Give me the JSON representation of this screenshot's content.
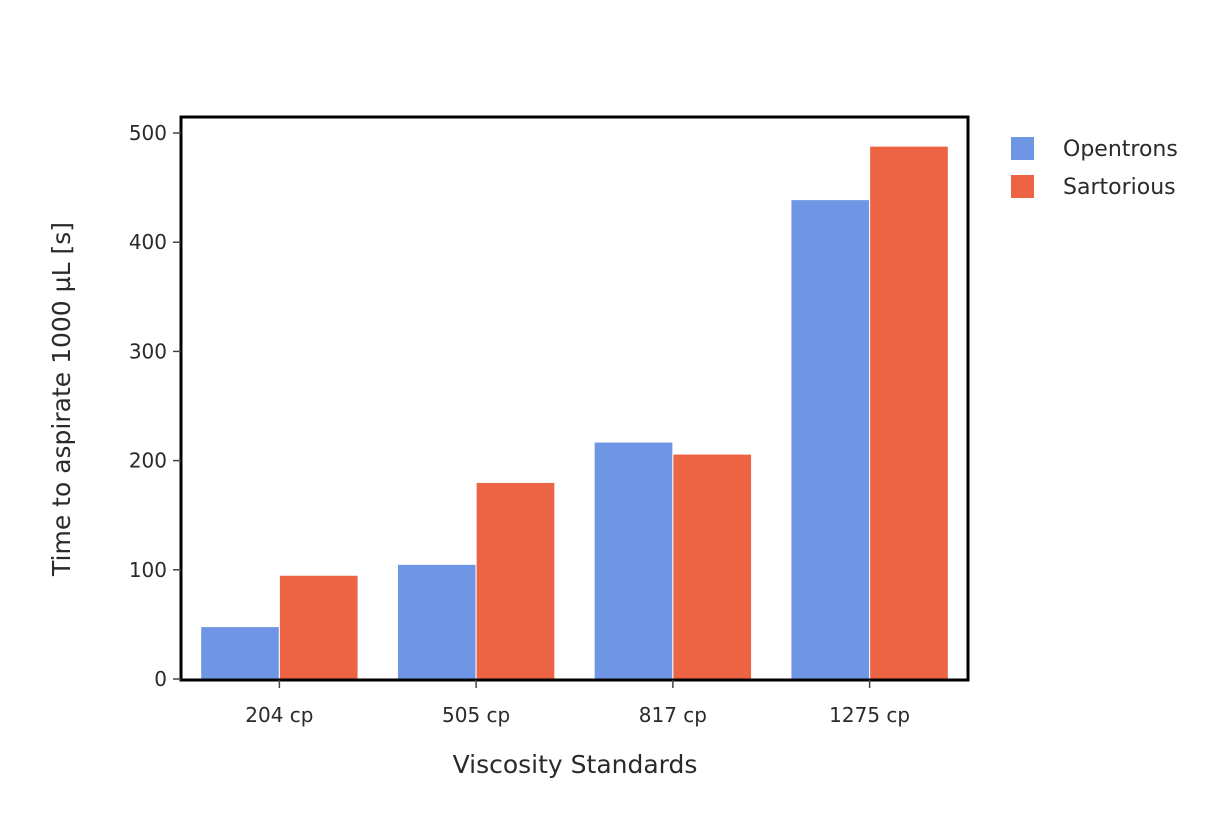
{
  "chart_data": {
    "type": "bar",
    "title": "",
    "xlabel": "Viscosity Standards",
    "ylabel": "Time to aspirate 1000 µL [s]",
    "categories": [
      "204 cp",
      "505 cp",
      "817 cp",
      "1275 cp"
    ],
    "series": [
      {
        "name": "Opentrons",
        "color": "#6f96e4",
        "values": [
          48,
          105,
          217,
          439
        ]
      },
      {
        "name": "Sartorious",
        "color": "#ec6443",
        "values": [
          95,
          180,
          206,
          488
        ]
      }
    ],
    "ylim": [
      0,
      500
    ],
    "yticks": [
      0,
      100,
      200,
      300,
      400,
      500
    ],
    "grid": false,
    "legend_position": "top-right"
  }
}
